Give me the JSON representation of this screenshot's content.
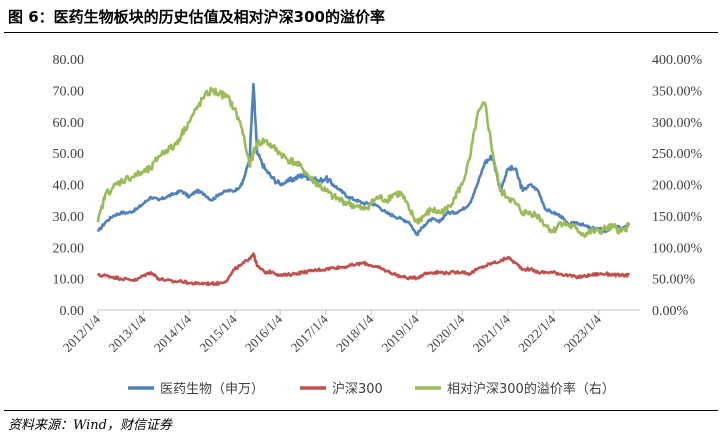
{
  "figure": {
    "title": "图 6：医药生物板块的历史估值及相对沪深300的溢价率",
    "source": "资料来源：Wind，财信证券"
  },
  "chart_data": {
    "type": "line",
    "x": [
      "2012/1/4",
      "2012/3/4",
      "2012/5/4",
      "2012/7/4",
      "2012/9/4",
      "2012/11/4",
      "2013/1/4",
      "2013/3/4",
      "2013/5/4",
      "2013/7/4",
      "2013/9/4",
      "2013/11/4",
      "2014/1/4",
      "2014/3/4",
      "2014/5/4",
      "2014/7/4",
      "2014/9/4",
      "2014/11/4",
      "2015/1/4",
      "2015/3/4",
      "2015/5/4",
      "2015/6/4",
      "2015/7/4",
      "2015/9/4",
      "2015/11/4",
      "2016/1/4",
      "2016/3/4",
      "2016/5/4",
      "2016/7/4",
      "2016/9/4",
      "2016/11/4",
      "2017/1/4",
      "2017/3/4",
      "2017/5/4",
      "2017/7/4",
      "2017/9/4",
      "2017/11/4",
      "2018/1/4",
      "2018/3/4",
      "2018/5/4",
      "2018/7/4",
      "2018/9/4",
      "2018/11/4",
      "2019/1/4",
      "2019/3/4",
      "2019/5/4",
      "2019/7/4",
      "2019/9/4",
      "2019/11/4",
      "2020/1/4",
      "2020/3/4",
      "2020/5/4",
      "2020/7/4",
      "2020/9/4",
      "2020/11/4",
      "2021/1/4",
      "2021/3/4",
      "2021/5/4",
      "2021/7/4",
      "2021/9/4",
      "2021/11/4",
      "2022/1/4",
      "2022/3/4",
      "2022/5/4",
      "2022/7/4",
      "2022/9/4",
      "2022/11/4",
      "2023/1/4",
      "2023/3/4",
      "2023/5/4",
      "2023/7/4",
      "2023/9/4"
    ],
    "series": [
      {
        "name": "医药生物（申万）",
        "axis": "left",
        "color": "#4f81bd",
        "values": [
          25,
          28,
          30,
          31,
          31,
          32,
          34,
          36,
          35,
          36,
          37,
          38,
          36,
          38,
          37,
          35,
          37,
          38,
          38,
          40,
          48,
          72,
          50,
          45,
          42,
          40,
          41,
          42,
          43,
          42,
          41,
          42,
          40,
          38,
          36,
          35,
          34,
          34,
          33,
          31,
          30,
          29,
          28,
          24,
          27,
          29,
          28,
          31,
          31,
          32,
          34,
          40,
          47,
          49,
          38,
          45,
          45,
          38,
          40,
          38,
          32,
          31,
          30,
          27,
          28,
          27,
          26,
          26,
          25,
          27,
          26,
          27
        ]
      },
      {
        "name": "沪深300",
        "axis": "left",
        "color": "#c0504d",
        "values": [
          11,
          11,
          10.5,
          10,
          9.8,
          9.5,
          11,
          12,
          10,
          9.5,
          9,
          9.2,
          8.6,
          8.4,
          8.5,
          8.4,
          8.5,
          9.5,
          13,
          14.5,
          16.5,
          18,
          14,
          12,
          12.2,
          11,
          11.2,
          11.6,
          12,
          12.4,
          12.8,
          13,
          13.5,
          13.6,
          14,
          14.5,
          15,
          14.2,
          13.5,
          12.5,
          11.5,
          10.6,
          10.2,
          10.2,
          11.5,
          12,
          12,
          11.8,
          12,
          12.2,
          11.5,
          13,
          14,
          15,
          15.5,
          16.8,
          15,
          13,
          13,
          12,
          12,
          12,
          11.5,
          11,
          10.5,
          10.7,
          11.2,
          11.5,
          11.5,
          11.2,
          11,
          11.2
        ]
      },
      {
        "name": "相对沪深300的溢价率（右）",
        "axis": "right",
        "color": "#9bbb59",
        "values": [
          140,
          185,
          195,
          205,
          210,
          215,
          220,
          225,
          245,
          255,
          260,
          280,
          300,
          320,
          340,
          350,
          345,
          340,
          320,
          290,
          230,
          250,
          265,
          270,
          260,
          250,
          240,
          235,
          225,
          210,
          200,
          190,
          180,
          175,
          170,
          165,
          160,
          170,
          180,
          175,
          185,
          185,
          160,
          140,
          150,
          160,
          155,
          160,
          180,
          200,
          240,
          310,
          330,
          250,
          190,
          180,
          170,
          155,
          155,
          150,
          135,
          125,
          140,
          135,
          130,
          120,
          125,
          125,
          130,
          132,
          125,
          135
        ]
      }
    ],
    "xlabel": "",
    "ylabel": "",
    "ylim": [
      0,
      80
    ],
    "y_ticks": [
      "0.00",
      "10.00",
      "20.00",
      "30.00",
      "40.00",
      "50.00",
      "60.00",
      "70.00",
      "80.00"
    ],
    "y2lim": [
      0,
      400
    ],
    "y2_ticks": [
      "0.00%",
      "50.00%",
      "100.00%",
      "150.00%",
      "200.00%",
      "250.00%",
      "300.00%",
      "350.00%",
      "400.00%"
    ],
    "x_ticks": [
      "2012/1/4",
      "2013/1/4",
      "2014/1/4",
      "2015/1/4",
      "2016/1/4",
      "2017/1/4",
      "2018/1/4",
      "2019/1/4",
      "2020/1/4",
      "2021/1/4",
      "2022/1/4",
      "2023/1/4"
    ],
    "grid": false,
    "legend_position": "bottom"
  }
}
